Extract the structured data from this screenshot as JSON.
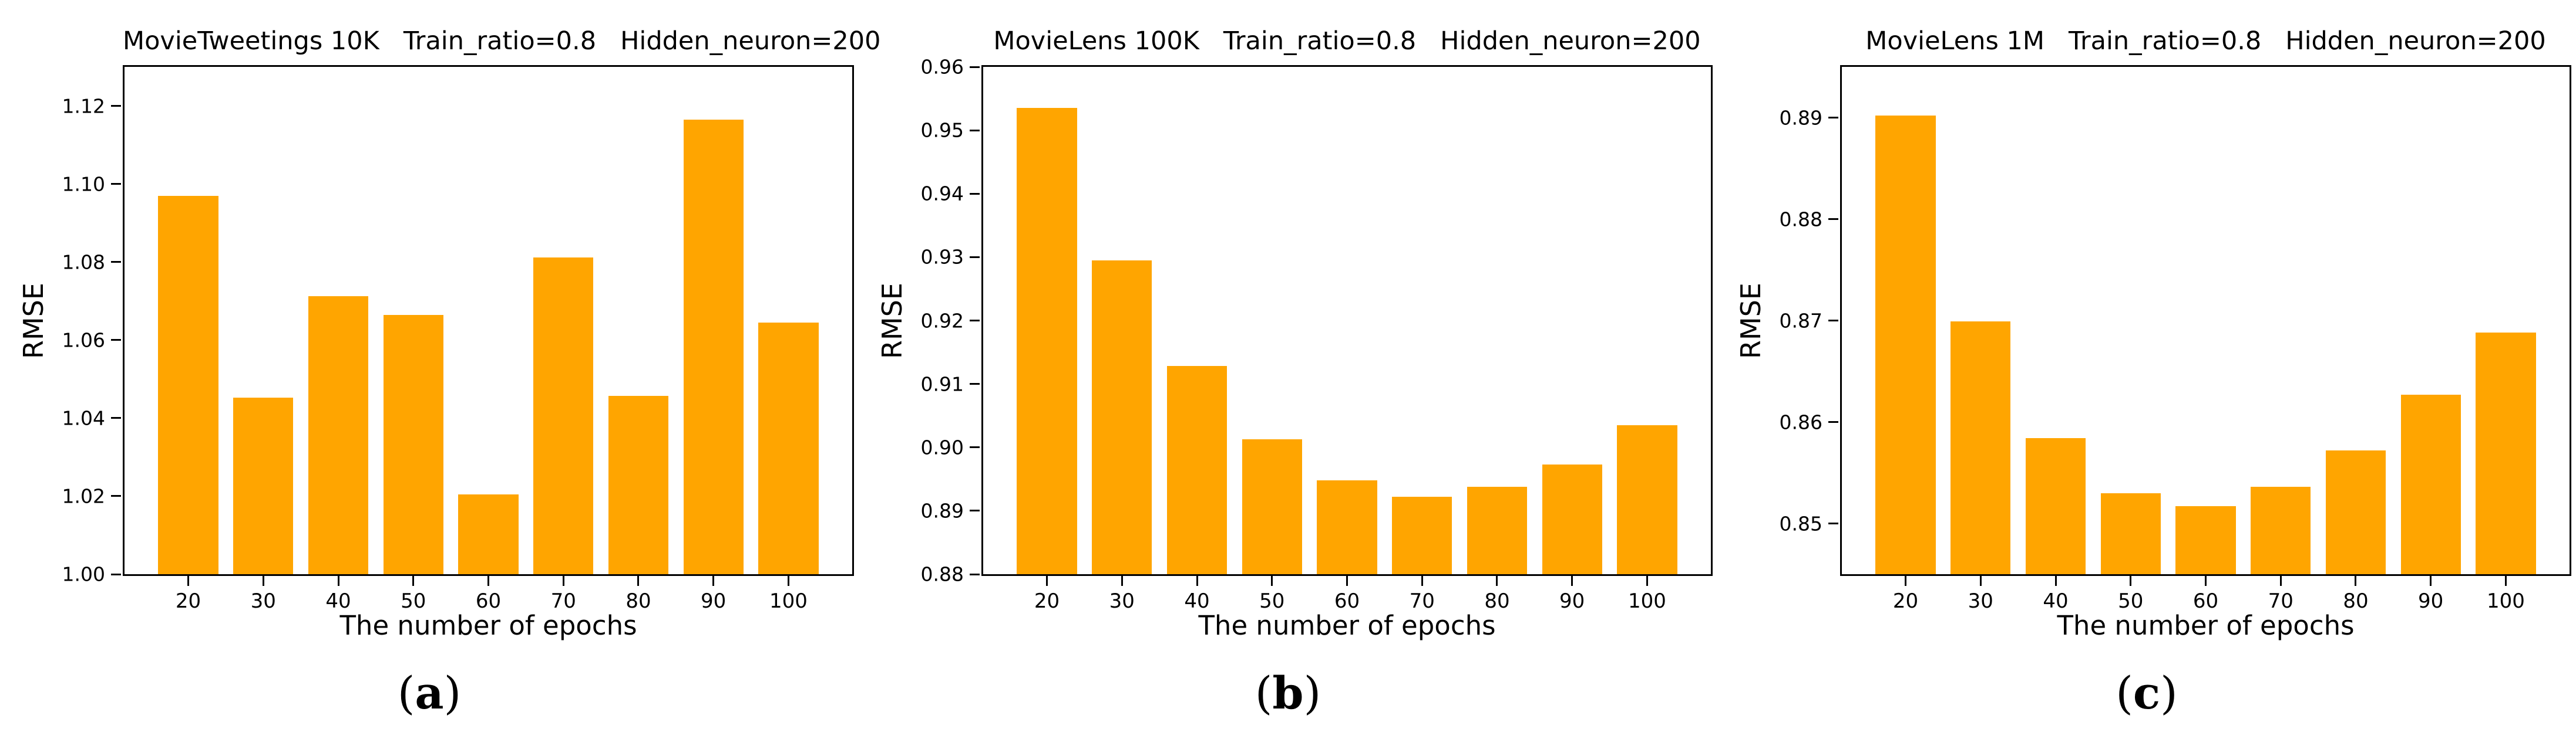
{
  "figure": {
    "background": "#ffffff",
    "text_color": "#000000",
    "bar_color": "#FFA500"
  },
  "chart_data": [
    {
      "type": "bar",
      "title": "MovieTweetings 10K   Train_ratio=0.8   Hidden_neuron=200",
      "xlabel": "The number of epochs",
      "ylabel": "RMSE",
      "caption": {
        "open": "(",
        "letter": "a",
        "close": ")"
      },
      "categories": [
        20,
        30,
        40,
        50,
        60,
        70,
        80,
        90,
        100
      ],
      "values": [
        1.097,
        1.0452,
        1.0712,
        1.0665,
        1.0205,
        1.0812,
        1.0457,
        1.1165,
        1.0645
      ],
      "ylim": [
        1.0,
        1.13
      ],
      "yticks": [
        {
          "value": 1.0,
          "label": "1.00"
        },
        {
          "value": 1.02,
          "label": "1.02"
        },
        {
          "value": 1.04,
          "label": "1.04"
        },
        {
          "value": 1.06,
          "label": "1.06"
        },
        {
          "value": 1.08,
          "label": "1.08"
        },
        {
          "value": 1.1,
          "label": "1.10"
        },
        {
          "value": 1.12,
          "label": "1.12"
        }
      ],
      "xlim": [
        11.5,
        108.5
      ],
      "bar_width_units": 8,
      "bar_color": "#FFA500",
      "grid": false,
      "legend": null
    },
    {
      "type": "bar",
      "title": "MovieLens 100K   Train_ratio=0.8   Hidden_neuron=200",
      "xlabel": "The number of epochs",
      "ylabel": "RMSE",
      "caption": {
        "open": "(",
        "letter": "b",
        "close": ")"
      },
      "categories": [
        20,
        30,
        40,
        50,
        60,
        70,
        80,
        90,
        100
      ],
      "values": [
        0.9535,
        0.9295,
        0.9128,
        0.9013,
        0.8948,
        0.8922,
        0.8938,
        0.8973,
        0.9035
      ],
      "ylim": [
        0.88,
        0.96
      ],
      "yticks": [
        {
          "value": 0.88,
          "label": "0.88"
        },
        {
          "value": 0.89,
          "label": "0.89"
        },
        {
          "value": 0.9,
          "label": "0.90"
        },
        {
          "value": 0.91,
          "label": "0.91"
        },
        {
          "value": 0.92,
          "label": "0.92"
        },
        {
          "value": 0.93,
          "label": "0.93"
        },
        {
          "value": 0.94,
          "label": "0.94"
        },
        {
          "value": 0.95,
          "label": "0.95"
        },
        {
          "value": 0.96,
          "label": "0.96"
        }
      ],
      "xlim": [
        11.5,
        108.5
      ],
      "bar_width_units": 8,
      "bar_color": "#FFA500",
      "grid": false,
      "legend": null
    },
    {
      "type": "bar",
      "title": "MovieLens 1M   Train_ratio=0.8   Hidden_neuron=200",
      "xlabel": "The number of epochs",
      "ylabel": "RMSE",
      "caption": {
        "open": "(",
        "letter": "c",
        "close": ")"
      },
      "categories": [
        20,
        30,
        40,
        50,
        60,
        70,
        80,
        90,
        100
      ],
      "values": [
        0.8902,
        0.8699,
        0.8584,
        0.853,
        0.8517,
        0.8536,
        0.8572,
        0.8627,
        0.8688
      ],
      "ylim": [
        0.845,
        0.895
      ],
      "yticks": [
        {
          "value": 0.85,
          "label": "0.85"
        },
        {
          "value": 0.86,
          "label": "0.86"
        },
        {
          "value": 0.87,
          "label": "0.87"
        },
        {
          "value": 0.88,
          "label": "0.88"
        },
        {
          "value": 0.89,
          "label": "0.89"
        }
      ],
      "xlim": [
        11.5,
        108.5
      ],
      "bar_width_units": 8,
      "bar_color": "#FFA500",
      "grid": false,
      "legend": null
    }
  ]
}
